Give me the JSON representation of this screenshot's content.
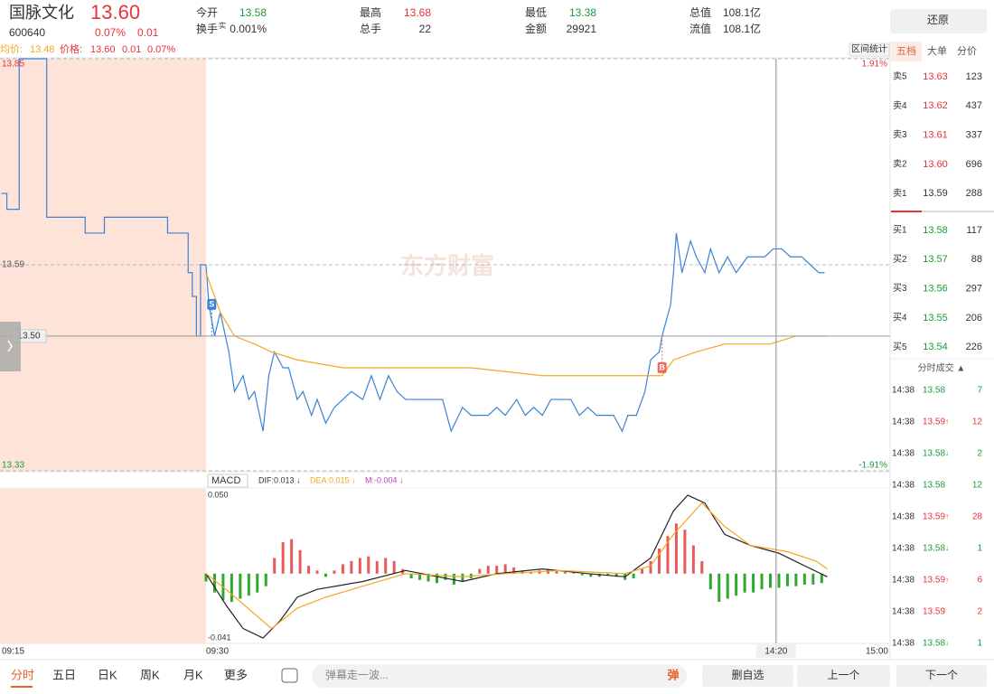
{
  "header": {
    "name": "国脉文化",
    "price": "13.60",
    "code": "600640",
    "change_pct": "0.07%",
    "change": "0.01",
    "stats": [
      {
        "label": "今开",
        "value": "13.58",
        "color": "#1a9c3a"
      },
      {
        "label": "换手",
        "label_sup": "实",
        "value": "0.001%",
        "color": "#333333"
      },
      {
        "label": "最高",
        "value": "13.68",
        "color": "#e8333a"
      },
      {
        "label": "总手",
        "value": "22",
        "color": "#333333"
      },
      {
        "label": "最低",
        "value": "13.38",
        "color": "#1a9c3a"
      },
      {
        "label": "金额",
        "value": "29921",
        "color": "#333333"
      },
      {
        "label": "总值",
        "value": "108.1亿",
        "color": "#333333"
      },
      {
        "label": "流值",
        "value": "108.1亿",
        "color": "#333333"
      }
    ]
  },
  "restore": "还原",
  "legend": {
    "avg_label": "均价:",
    "avg": "13.48",
    "price_label": "价格:",
    "price": "13.60",
    "change": "0.01",
    "pct": "0.07%"
  },
  "range_stats": "区间统计",
  "watermark": "东方财富",
  "chart_data": [
    {
      "type": "line",
      "xlim": [
        0,
        240
      ],
      "ylim": [
        13.33,
        13.85
      ],
      "yticks": [
        13.85,
        13.59,
        13.33
      ],
      "ytick_colors": [
        "#e8333a",
        "#555555",
        "#1a9c3a"
      ],
      "y2lim": [
        -1.91,
        1.91
      ],
      "y2ticks": [
        {
          "value": 1.91,
          "label": "1.91%"
        },
        {
          "value": -1.91,
          "label": "-1.91%"
        }
      ],
      "y2tick_colors": [
        "#e8333a",
        "#1a9c3a"
      ],
      "grid": "dashed",
      "time_labels": [
        "09:15",
        "09:30",
        "15:00"
      ],
      "premarket": {
        "color": "#3b82d6",
        "shade": "#fde3d8",
        "step": "post",
        "xlim": [
          0,
          15
        ],
        "x": [
          0.1,
          0.5,
          1.4,
          3.4,
          6.2,
          7.6,
          12.2,
          13.7,
          14,
          14.3,
          14.6,
          15
        ],
        "values": [
          13.68,
          13.66,
          13.85,
          13.65,
          13.63,
          13.65,
          13.63,
          13.58,
          13.55,
          13.5,
          13.59,
          13.59
        ]
      },
      "series": [
        {
          "color": "#3b82d6",
          "x": [
            0,
            1,
            3,
            5,
            8,
            10,
            13,
            15,
            17,
            20,
            22,
            24,
            27,
            29,
            32,
            34,
            37,
            39,
            42,
            45,
            48,
            51,
            55,
            58,
            61,
            64,
            67,
            70,
            74,
            77,
            80,
            83,
            86,
            90,
            93,
            96,
            99,
            102,
            105,
            109,
            112,
            115,
            118,
            121,
            124,
            128,
            131,
            134,
            137,
            140,
            143,
            146,
            148,
            151,
            154,
            156,
            159,
            160,
            163,
            164,
            165,
            167,
            170,
            172,
            175,
            177,
            180,
            183,
            186,
            190,
            193,
            196,
            199,
            202,
            205,
            209,
            212,
            215,
            217
          ],
          "values": [
            13.59,
            13.54,
            13.5,
            13.53,
            13.48,
            13.43,
            13.45,
            13.42,
            13.43,
            13.38,
            13.45,
            13.48,
            13.46,
            13.46,
            13.42,
            13.43,
            13.4,
            13.42,
            13.39,
            13.41,
            13.42,
            13.43,
            13.42,
            13.45,
            13.42,
            13.45,
            13.43,
            13.42,
            13.42,
            13.42,
            13.42,
            13.42,
            13.38,
            13.41,
            13.4,
            13.4,
            13.4,
            13.41,
            13.4,
            13.42,
            13.4,
            13.41,
            13.4,
            13.42,
            13.42,
            13.42,
            13.4,
            13.41,
            13.4,
            13.4,
            13.4,
            13.38,
            13.4,
            13.4,
            13.43,
            13.47,
            13.48,
            13.5,
            13.54,
            13.58,
            13.63,
            13.58,
            13.62,
            13.6,
            13.58,
            13.61,
            13.58,
            13.6,
            13.58,
            13.6,
            13.6,
            13.6,
            13.61,
            13.61,
            13.6,
            13.6,
            13.59,
            13.58,
            13.58
          ]
        },
        {
          "color": "#f5a623",
          "x": [
            0,
            5,
            10,
            17,
            23,
            32,
            48,
            70,
            93,
            118,
            150,
            160,
            164,
            172,
            182,
            198,
            207,
            218
          ],
          "values": [
            13.58,
            13.53,
            13.5,
            13.49,
            13.48,
            13.47,
            13.46,
            13.46,
            13.46,
            13.45,
            13.45,
            13.45,
            13.47,
            13.48,
            13.49,
            13.49,
            13.5,
            13.5
          ]
        }
      ],
      "markers": [
        {
          "x": 2,
          "y": 13.5,
          "label": "S",
          "placement": "above",
          "color": "#3b82d6"
        },
        {
          "x": 160,
          "y": 13.5,
          "label": "B",
          "placement": "below",
          "color": "#ef6a5a"
        }
      ],
      "crosshair": {
        "x": 200,
        "x_label": "14:20",
        "y": 13.5,
        "y_label": "13.50"
      }
    },
    {
      "type": "macd",
      "title": "MACD",
      "xlim": [
        0,
        240
      ],
      "ylim": [
        -0.041,
        0.05
      ],
      "yticks": [
        {
          "value": 0.05,
          "label": "0.050"
        },
        -0.041
      ],
      "indicators": [
        {
          "text": "DIF:0.013 ↓",
          "color": "#333333"
        },
        {
          "text": "DEA:0.015 ↓",
          "color": "#f5a623"
        },
        {
          "text": "M:-0.004 ↓",
          "color": "#c040c0"
        }
      ],
      "histogram": {
        "up_color": "#e85a5a",
        "down_color": "#2ea82e",
        "x": [
          0,
          3,
          6,
          9,
          12,
          15,
          18,
          21,
          24,
          27,
          30,
          33,
          36,
          39,
          42,
          45,
          48,
          51,
          54,
          57,
          60,
          63,
          66,
          69,
          72,
          75,
          78,
          81,
          84,
          87,
          90,
          93,
          96,
          99,
          102,
          105,
          108,
          111,
          114,
          117,
          120,
          123,
          126,
          129,
          132,
          135,
          138,
          141,
          144,
          147,
          150,
          153,
          156,
          159,
          162,
          165,
          168,
          171,
          174,
          177,
          180,
          183,
          186,
          189,
          192,
          195,
          198,
          201,
          204,
          207,
          210,
          213,
          216
        ],
        "values": [
          -0.005,
          -0.012,
          -0.017,
          -0.018,
          -0.016,
          -0.014,
          -0.012,
          -0.008,
          0.01,
          0.02,
          0.022,
          0.015,
          0.005,
          0.002,
          -0.002,
          0.002,
          0.006,
          0.008,
          0.01,
          0.011,
          0.008,
          0.01,
          0.008,
          0.003,
          -0.003,
          -0.004,
          -0.005,
          -0.006,
          -0.004,
          -0.007,
          -0.005,
          -0.003,
          0.003,
          0.005,
          0.005,
          0.006,
          0.004,
          0.002,
          0.001,
          0.002,
          0.003,
          0.002,
          0.001,
          0.001,
          -0.001,
          -0.002,
          -0.002,
          -0.001,
          -0.002,
          -0.004,
          -0.003,
          0.003,
          0.008,
          0.016,
          0.024,
          0.032,
          0.028,
          0.018,
          0.008,
          -0.01,
          -0.018,
          -0.016,
          -0.014,
          -0.012,
          -0.012,
          -0.01,
          -0.009,
          -0.009,
          -0.008,
          -0.008,
          -0.007,
          -0.007,
          -0.006
        ]
      },
      "series": [
        {
          "color": "#222222",
          "x": [
            0,
            7,
            13,
            20,
            26,
            32,
            39,
            55,
            70,
            90,
            102,
            118,
            134,
            147,
            156,
            164,
            169,
            175,
            182,
            191,
            201,
            210,
            218
          ],
          "values": [
            0,
            -0.02,
            -0.035,
            -0.041,
            -0.03,
            -0.015,
            -0.01,
            -0.005,
            0.002,
            -0.005,
            0,
            0.003,
            0,
            -0.002,
            0.01,
            0.04,
            0.05,
            0.045,
            0.025,
            0.018,
            0.013,
            0.005,
            -0.002
          ]
        },
        {
          "color": "#f5a623",
          "x": [
            0,
            7,
            23,
            32,
            42,
            55,
            70,
            90,
            105,
            124,
            147,
            156,
            164,
            174,
            182,
            191,
            204,
            214,
            218
          ],
          "values": [
            0,
            -0.01,
            -0.035,
            -0.022,
            -0.015,
            -0.008,
            0,
            -0.002,
            0,
            0.002,
            0,
            0.005,
            0.025,
            0.045,
            0.03,
            0.018,
            0.014,
            0.008,
            0.003
          ]
        }
      ]
    }
  ],
  "side_panel": {
    "tabs": [
      "五档",
      "大单",
      "分价"
    ],
    "asks": [
      {
        "label": "卖5",
        "price": "13.63",
        "volume": "123",
        "color": "#e8333a"
      },
      {
        "label": "卖4",
        "price": "13.62",
        "volume": "437",
        "color": "#e8333a"
      },
      {
        "label": "卖3",
        "price": "13.61",
        "volume": "337",
        "color": "#e8333a"
      },
      {
        "label": "卖2",
        "price": "13.60",
        "volume": "696",
        "color": "#e8333a"
      },
      {
        "label": "卖1",
        "price": "13.59",
        "volume": "288",
        "color": "#333333"
      }
    ],
    "bids": [
      {
        "label": "买1",
        "price": "13.58",
        "volume": "117",
        "color": "#1a9c3a"
      },
      {
        "label": "买2",
        "price": "13.57",
        "volume": "88",
        "color": "#1a9c3a"
      },
      {
        "label": "买3",
        "price": "13.56",
        "volume": "297",
        "color": "#1a9c3a"
      },
      {
        "label": "买4",
        "price": "13.55",
        "volume": "206",
        "color": "#1a9c3a"
      },
      {
        "label": "买5",
        "price": "13.54",
        "volume": "226",
        "color": "#1a9c3a"
      }
    ],
    "trades_title": "分时成交 ▲",
    "trades": [
      {
        "time": "14:38",
        "price": "13.58",
        "volume": "7",
        "color": "#1a9c3a"
      },
      {
        "time": "14:38",
        "price": "13.59",
        "arrow": "↑",
        "volume": "12",
        "color": "#e8333a"
      },
      {
        "time": "14:38",
        "price": "13.58",
        "arrow": "↓",
        "volume": "2",
        "color": "#1a9c3a"
      },
      {
        "time": "14:38",
        "price": "13.58",
        "volume": "12",
        "color": "#1a9c3a"
      },
      {
        "time": "14:38",
        "price": "13.59",
        "arrow": "↑",
        "volume": "28",
        "color": "#e8333a"
      },
      {
        "time": "14:38",
        "price": "13.58",
        "arrow": "↓",
        "volume": "1",
        "color": "#1a9c3a"
      },
      {
        "time": "14:38",
        "price": "13.59",
        "arrow": "↑",
        "volume": "6",
        "color": "#e8333a"
      },
      {
        "time": "14:38",
        "price": "13.59",
        "volume": "2",
        "color": "#e8333a"
      },
      {
        "time": "14:38",
        "price": "13.58",
        "arrow": "↓",
        "volume": "1",
        "color": "#1a9c3a"
      }
    ]
  },
  "toolbar": {
    "periods": [
      "分时",
      "五日",
      "日K",
      "周K",
      "月K",
      "更多"
    ],
    "placeholder": "弹幕走一波...",
    "danmu": "弹",
    "buttons": [
      "删自选",
      "上一个",
      "下一个"
    ]
  }
}
